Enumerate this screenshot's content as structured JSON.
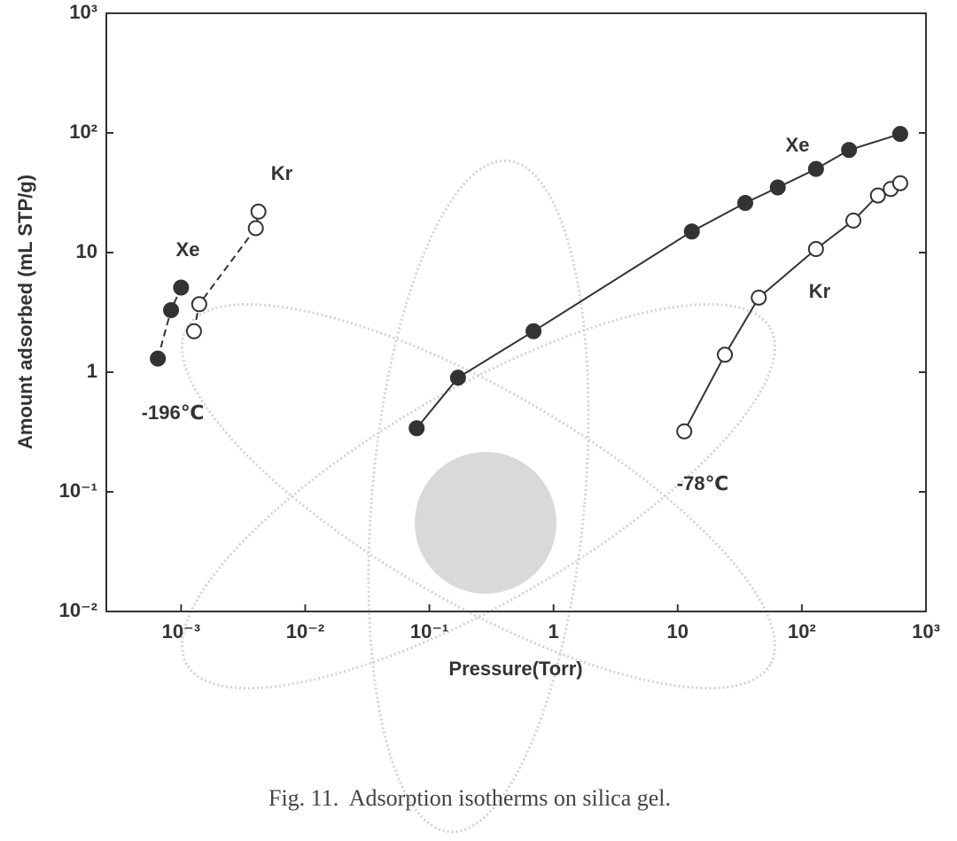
{
  "chart_data": {
    "type": "scatter",
    "x_label": "Pressure(Torr)",
    "y_label": "Amount adsorbed (mL STP/g)",
    "caption": "Fig. 11.  Adsorption isotherms on silica gel.",
    "xscale": "log",
    "yscale": "log",
    "xlim": [
      0.00025,
      1000
    ],
    "ylim": [
      0.01,
      1000
    ],
    "xticks": [
      {
        "value": 0.001,
        "label": "10⁻³"
      },
      {
        "value": 0.01,
        "label": "10⁻²"
      },
      {
        "value": 0.1,
        "label": "10⁻¹"
      },
      1,
      10,
      {
        "value": 100,
        "label": "10²"
      },
      {
        "value": 1000,
        "label": "10³"
      }
    ],
    "yticks": [
      {
        "value": 0.01,
        "label": "10⁻²"
      },
      {
        "value": 0.1,
        "label": "10⁻¹"
      },
      1,
      10,
      {
        "value": 100,
        "label": "10²"
      },
      {
        "value": 1000,
        "label": "10³"
      }
    ],
    "series": [
      {
        "name": "Xe",
        "color": "#333333",
        "filled": true,
        "dashed": true,
        "x": [
          0.00065,
          0.00083,
          0.001
        ],
        "values": [
          1.3,
          3.3,
          5.1
        ]
      },
      {
        "name": "Kr",
        "color": "#333333",
        "filled": false,
        "dashed": true,
        "x": [
          0.00127,
          0.0014,
          0.004,
          0.0042
        ],
        "values": [
          2.2,
          3.7,
          16,
          22
        ]
      },
      {
        "name": "Xe",
        "color": "#333333",
        "filled": true,
        "dashed": false,
        "x": [
          0.079,
          0.17,
          0.69,
          13,
          35,
          64,
          130,
          240,
          620
        ],
        "values": [
          0.34,
          0.9,
          2.2,
          15,
          26,
          35,
          50,
          72,
          98
        ]
      },
      {
        "name": "Kr",
        "color": "#333333",
        "filled": false,
        "dashed": false,
        "x": [
          11.3,
          24,
          45,
          130,
          260,
          410,
          520,
          620
        ],
        "values": [
          0.32,
          1.4,
          4.2,
          10.7,
          18.5,
          30,
          34,
          38
        ]
      }
    ],
    "annotations": [
      "-196℃",
      "-78℃"
    ]
  }
}
